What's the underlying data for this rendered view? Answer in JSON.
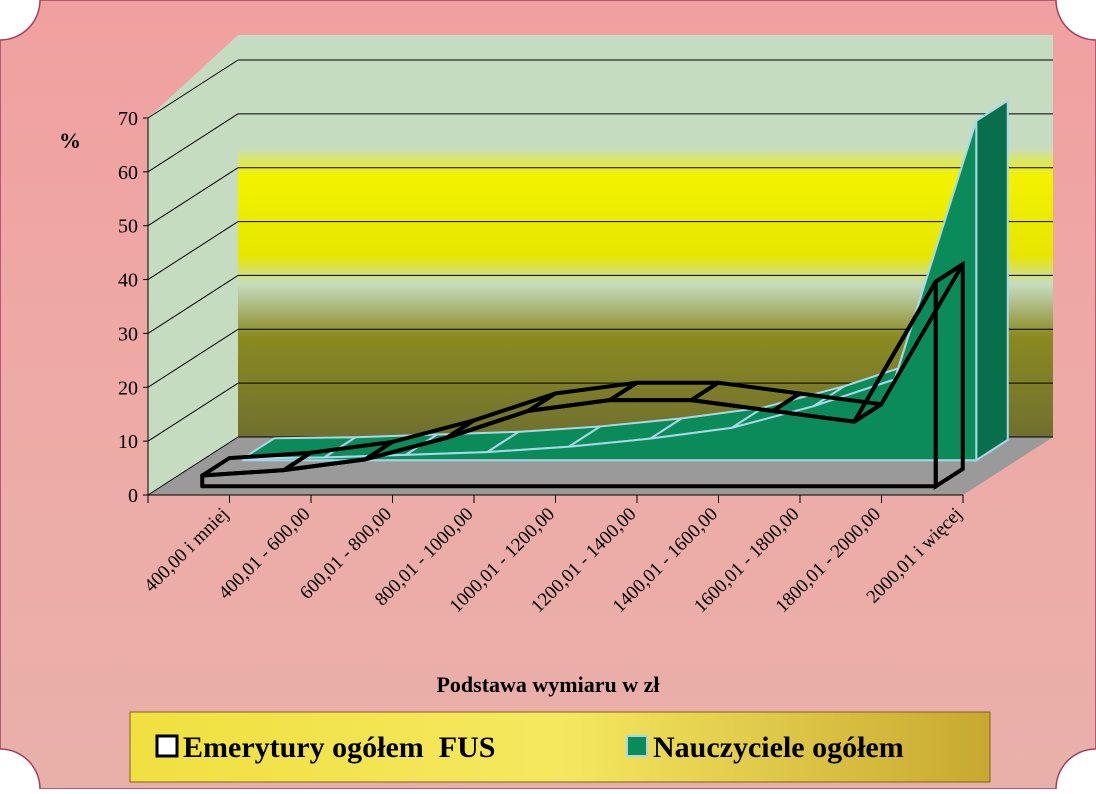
{
  "chart_data": {
    "type": "area3d",
    "y_label": "%",
    "x_label": "Podstawa wymiaru w zł",
    "categories": [
      "400,00 i mniej",
      "400,01 - 600,00",
      "600,01 - 800,00",
      "800,01 - 1000,00",
      "1000,01 - 1200,00",
      "1200,01 - 1400,00",
      "1400,01 - 1600,00",
      "1600,01 - 1800,00",
      "1800,01 - 2000,00",
      "2000,01 i więcej"
    ],
    "series": [
      {
        "name": "Emerytury ogółem  FUS",
        "color": "#ffffff",
        "values": [
          2,
          3,
          5,
          9,
          14,
          16,
          16,
          14,
          12,
          38
        ]
      },
      {
        "name": "Nauczyciele ogółem",
        "color": "#0b8a5a",
        "values": [
          0.3,
          0.5,
          1,
          1.5,
          2.5,
          4,
          6,
          10,
          15,
          63
        ]
      }
    ],
    "ylim": [
      0,
      70
    ],
    "yticks": [
      0,
      10,
      20,
      30,
      40,
      50,
      60,
      70
    ],
    "grid": true
  }
}
